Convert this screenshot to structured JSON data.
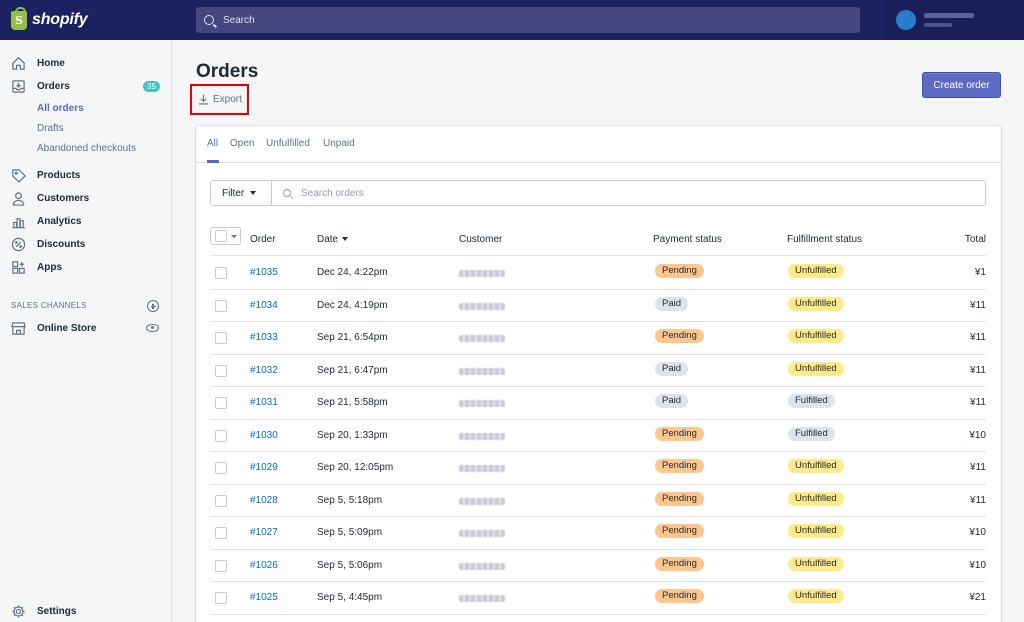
{
  "app": {
    "brand": "shopify"
  },
  "topbar": {
    "search_placeholder": "Search"
  },
  "sidebar": {
    "home": "Home",
    "orders": {
      "label": "Orders",
      "count": "35"
    },
    "orders_sub": [
      "All orders",
      "Drafts",
      "Abandoned checkouts"
    ],
    "products": "Products",
    "customers": "Customers",
    "analytics": "Analytics",
    "discounts": "Discounts",
    "apps": "Apps",
    "sales_channels_heading": "SALES CHANNELS",
    "online_store": "Online Store",
    "settings": "Settings"
  },
  "page": {
    "title": "Orders",
    "export_label": "Export",
    "create_label": "Create order"
  },
  "tabs": [
    "All",
    "Open",
    "Unfulfilled",
    "Unpaid"
  ],
  "filter": {
    "label": "Filter",
    "search_placeholder": "Search orders"
  },
  "table": {
    "headers": {
      "order": "Order",
      "date": "Date",
      "customer": "Customer",
      "payment": "Payment status",
      "fulfillment": "Fulfillment status",
      "total": "Total"
    },
    "rows": [
      {
        "order": "#1035",
        "date": "Dec 24, 4:22pm",
        "payment": "Pending",
        "fulfillment": "Unfulfilled",
        "total": "¥1"
      },
      {
        "order": "#1034",
        "date": "Dec 24, 4:19pm",
        "payment": "Paid",
        "fulfillment": "Unfulfilled",
        "total": "¥11"
      },
      {
        "order": "#1033",
        "date": "Sep 21, 6:54pm",
        "payment": "Pending",
        "fulfillment": "Unfulfilled",
        "total": "¥11"
      },
      {
        "order": "#1032",
        "date": "Sep 21, 6:47pm",
        "payment": "Paid",
        "fulfillment": "Unfulfilled",
        "total": "¥11"
      },
      {
        "order": "#1031",
        "date": "Sep 21, 5:58pm",
        "payment": "Paid",
        "fulfillment": "Fulfilled",
        "total": "¥11"
      },
      {
        "order": "#1030",
        "date": "Sep 20, 1:33pm",
        "payment": "Pending",
        "fulfillment": "Fulfilled",
        "total": "¥10"
      },
      {
        "order": "#1029",
        "date": "Sep 20, 12:05pm",
        "payment": "Pending",
        "fulfillment": "Unfulfilled",
        "total": "¥11"
      },
      {
        "order": "#1028",
        "date": "Sep 5, 5:18pm",
        "payment": "Pending",
        "fulfillment": "Unfulfilled",
        "total": "¥11"
      },
      {
        "order": "#1027",
        "date": "Sep 5, 5:09pm",
        "payment": "Pending",
        "fulfillment": "Unfulfilled",
        "total": "¥10"
      },
      {
        "order": "#1026",
        "date": "Sep 5, 5:06pm",
        "payment": "Pending",
        "fulfillment": "Unfulfilled",
        "total": "¥10"
      },
      {
        "order": "#1025",
        "date": "Sep 5, 4:45pm",
        "payment": "Pending",
        "fulfillment": "Unfulfilled",
        "total": "¥21"
      }
    ]
  },
  "colors": {
    "topbar": "#1c2260",
    "accent": "#5c6ac4",
    "pending_bg": "#ffc58b",
    "paid_bg": "#dfe3e8",
    "unfulfilled_bg": "#ffea8a",
    "fulfilled_bg": "#dfe3e8",
    "link": "#006fbb",
    "highlight_box": "#e3000b"
  }
}
